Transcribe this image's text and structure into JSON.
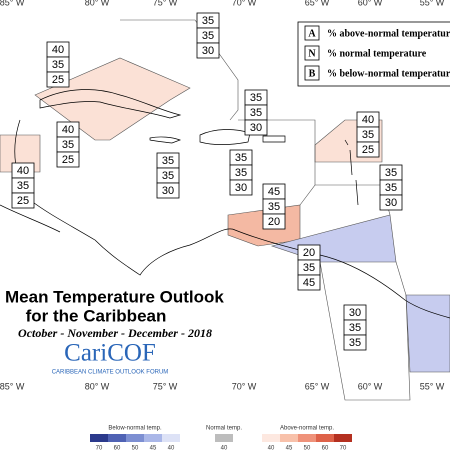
{
  "longitudes": [
    "85° W",
    "80° W",
    "75° W",
    "70° W",
    "65° W",
    "60° W",
    "55° W"
  ],
  "legend": {
    "rows": [
      {
        "key": "A",
        "text": "% above-normal temperature"
      },
      {
        "key": "N",
        "text": "% normal temperature"
      },
      {
        "key": "B",
        "text": "% below-normal temperature"
      }
    ]
  },
  "title": {
    "line1": "Mean Temperature Outlook",
    "line2": "for the Caribbean",
    "period": "October - November - December - 2018"
  },
  "logo": {
    "name": "CariCOF",
    "subtitle": "CARIBBEAN CLIMATE OUTLOOK FORUM"
  },
  "regions": [
    {
      "above": 40,
      "normal": 35,
      "below": 25
    },
    {
      "above": 35,
      "normal": 35,
      "below": 30
    },
    {
      "above": 35,
      "normal": 35,
      "below": 30
    },
    {
      "above": 40,
      "normal": 35,
      "below": 25
    },
    {
      "above": 40,
      "normal": 35,
      "below": 25
    },
    {
      "above": 35,
      "normal": 35,
      "below": 30
    },
    {
      "above": 35,
      "normal": 35,
      "below": 30
    },
    {
      "above": 40,
      "normal": 35,
      "below": 25
    },
    {
      "above": 35,
      "normal": 35,
      "below": 30
    },
    {
      "above": 45,
      "normal": 35,
      "below": 20
    },
    {
      "above": 20,
      "normal": 35,
      "below": 45
    },
    {
      "above": 30,
      "normal": 35,
      "below": 35
    }
  ],
  "colorbar": {
    "below": {
      "label": "Below-normal temp.",
      "ticks": [
        70,
        60,
        50,
        45,
        40
      ]
    },
    "normal": {
      "label": "Normal temp.",
      "ticks": [
        40
      ]
    },
    "above": {
      "label": "Above-normal temp.",
      "ticks": [
        40,
        45,
        50,
        60,
        70
      ]
    }
  }
}
